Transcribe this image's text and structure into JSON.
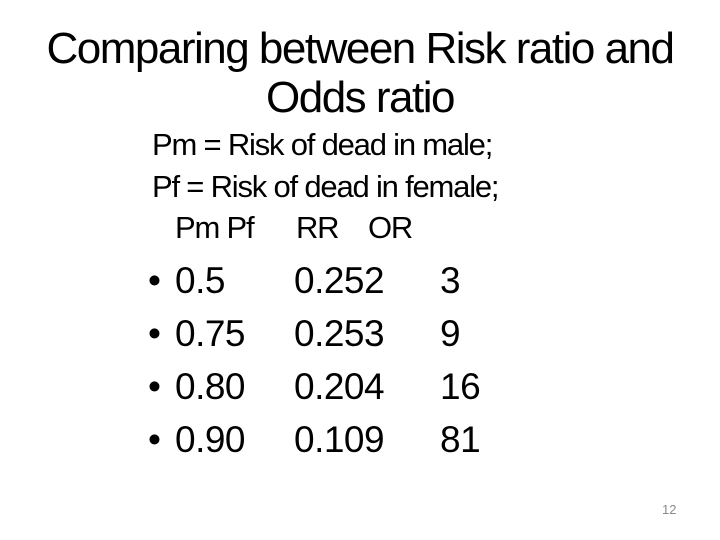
{
  "slide": {
    "title_line1": "Comparing between Risk ratio and",
    "title_line2": "Odds ratio",
    "definitions": [
      "Pm = Risk of dead in male;",
      "Pf = Risk of dead in female;"
    ],
    "bullet_glyph": "•",
    "table": {
      "headers": [
        "Pm Pf",
        "RR",
        "OR"
      ],
      "rows": [
        {
          "pm_pf": "0.5",
          "rr": "0.252",
          "or": "3"
        },
        {
          "pm_pf": "0.75",
          "rr": "0.253",
          "or": "9"
        },
        {
          "pm_pf": "0.80",
          "rr": "0.204",
          "or": "16"
        },
        {
          "pm_pf": "0.90",
          "rr": "0.109",
          "or": "81"
        }
      ]
    },
    "page_number": "12",
    "colors": {
      "background": "#ffffff",
      "text": "#000000",
      "page_number": "#8a8a8a"
    }
  }
}
